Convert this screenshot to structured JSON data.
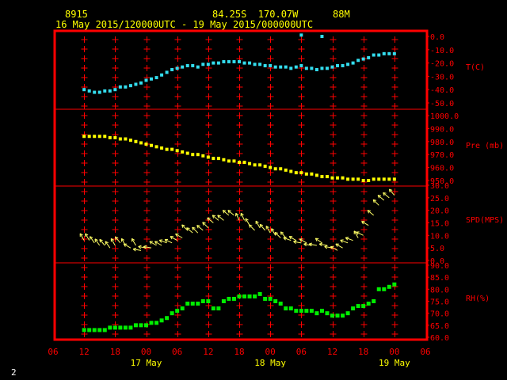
{
  "header": {
    "station_id": "8915",
    "location": "84.25S  170.07W",
    "elevation": "88M",
    "time_range": "16 May 2015/120000UTC - 19 May 2015/000000UTC"
  },
  "corner_label": "2",
  "colors": {
    "frame": "#ff0000",
    "grid": "#ff0000",
    "axis_text": "#ff0000",
    "header_text": "#ffff00",
    "temperature": "#33ddee",
    "pressure": "#ffff00",
    "wind": "#ffff66",
    "humidity": "#00ee00"
  },
  "chart_data": {
    "type": "scatter",
    "x_axis": {
      "unit": "hours since 16 May 2015 06 UTC",
      "range": [
        0,
        72
      ],
      "tick_labels": [
        "06",
        "12",
        "18",
        "00",
        "06",
        "12",
        "18",
        "00",
        "06",
        "12",
        "18",
        "00",
        "06"
      ],
      "day_labels": [
        {
          "label": "17 May",
          "at": 18
        },
        {
          "label": "18 May",
          "at": 42
        },
        {
          "label": "19 May",
          "at": 66
        }
      ]
    },
    "panels": [
      {
        "name": "temperature",
        "ylabel": "T(C)",
        "ylim": [
          -50,
          0
        ],
        "ticks": [
          "0.0",
          "-10.0",
          "-20.0",
          "-30.0",
          "-40.0",
          "-50.0"
        ],
        "tick_values": [
          0,
          -10,
          -20,
          -30,
          -40,
          -50
        ],
        "x": [
          6,
          7,
          8,
          9,
          10,
          11,
          12,
          13,
          14,
          15,
          16,
          17,
          18,
          19,
          20,
          21,
          22,
          23,
          24,
          25,
          26,
          27,
          28,
          29,
          30,
          31,
          32,
          33,
          34,
          35,
          36,
          37,
          38,
          39,
          40,
          41,
          42,
          43,
          44,
          45,
          46,
          47,
          48,
          49,
          50,
          51,
          52,
          53,
          54,
          55,
          56,
          57,
          58,
          59,
          60,
          61,
          62,
          63,
          64,
          65,
          66
        ],
        "values": [
          -40,
          -41,
          -42,
          -42,
          -41,
          -41,
          -40,
          -38,
          -38,
          -37,
          -36,
          -35,
          -33,
          -32,
          -31,
          -29,
          -27,
          -25,
          -24,
          -23,
          -22,
          -22,
          -23,
          -21,
          -21,
          -20,
          -20,
          -19,
          -19,
          -19,
          -19,
          -20,
          -20,
          -21,
          -21,
          -22,
          -22,
          -23,
          -23,
          -23,
          -24,
          -23,
          -22,
          -24,
          -24,
          -25,
          -24,
          -24,
          -23,
          -22,
          -22,
          -21,
          -20,
          -18,
          -17,
          -16,
          -14,
          -14,
          -13,
          -13,
          -13
        ],
        "outliers": [
          {
            "x": 48,
            "y": 1
          },
          {
            "x": 52,
            "y": 0
          }
        ]
      },
      {
        "name": "pressure",
        "ylabel": "Pre (mb)",
        "ylim": [
          950,
          1000
        ],
        "ticks": [
          "1000.0",
          "990.0",
          "980.0",
          "970.0",
          "960.0",
          "950.0"
        ],
        "tick_values": [
          1000,
          990,
          980,
          970,
          960,
          950
        ],
        "x": [
          6,
          7,
          8,
          9,
          10,
          11,
          12,
          13,
          14,
          15,
          16,
          17,
          18,
          19,
          20,
          21,
          22,
          23,
          24,
          25,
          26,
          27,
          28,
          29,
          30,
          31,
          32,
          33,
          34,
          35,
          36,
          37,
          38,
          39,
          40,
          41,
          42,
          43,
          44,
          45,
          46,
          47,
          48,
          49,
          50,
          51,
          52,
          53,
          54,
          55,
          56,
          57,
          58,
          59,
          60,
          61,
          62,
          63,
          64,
          65,
          66
        ],
        "values": [
          984,
          984,
          984,
          984,
          984,
          983,
          983,
          982,
          982,
          981,
          980,
          979,
          978,
          977,
          976,
          975,
          974,
          974,
          973,
          972,
          971,
          970,
          970,
          969,
          968,
          967,
          967,
          966,
          965,
          965,
          964,
          964,
          963,
          962,
          962,
          961,
          960,
          959,
          959,
          958,
          957,
          956,
          956,
          955,
          955,
          954,
          953,
          953,
          952,
          952,
          952,
          951,
          951,
          951,
          950,
          950,
          951,
          951,
          951,
          951,
          951
        ]
      },
      {
        "name": "wind",
        "ylabel": "SPD(MPS)",
        "ylim": [
          0,
          30
        ],
        "ticks": [
          "30.0",
          "25.0",
          "20.0",
          "15.0",
          "10.0",
          "5.0",
          "0.0"
        ],
        "tick_values": [
          30,
          25,
          20,
          15,
          10,
          5,
          0
        ],
        "x": [
          6,
          7,
          8,
          9,
          10,
          11,
          12,
          13,
          14,
          15,
          16,
          17,
          18,
          19,
          20,
          21,
          22,
          23,
          24,
          25,
          26,
          27,
          28,
          29,
          30,
          31,
          32,
          33,
          34,
          35,
          36,
          37,
          38,
          39,
          40,
          41,
          42,
          43,
          44,
          45,
          46,
          47,
          48,
          49,
          50,
          51,
          52,
          53,
          54,
          55,
          56,
          57,
          58,
          59,
          60,
          61,
          62,
          63,
          64,
          65,
          66
        ],
        "values": [
          8,
          8,
          7,
          6,
          6,
          5,
          6,
          7,
          6,
          5,
          6,
          4,
          5,
          5,
          6,
          6,
          7,
          7,
          8,
          9,
          12,
          11,
          11,
          12,
          13,
          15,
          16,
          16,
          18,
          18,
          16,
          16,
          14,
          12,
          13,
          12,
          11,
          10,
          9,
          9,
          8,
          8,
          7,
          7,
          6,
          6,
          7,
          6,
          5,
          4,
          5,
          7,
          8,
          9,
          10,
          14,
          18,
          22,
          24,
          25,
          26
        ],
        "direction_deg": [
          120,
          120,
          125,
          125,
          130,
          125,
          120,
          130,
          120,
          150,
          120,
          170,
          170,
          170,
          150,
          150,
          160,
          155,
          150,
          150,
          135,
          140,
          135,
          140,
          135,
          140,
          140,
          140,
          140,
          140,
          115,
          115,
          120,
          135,
          120,
          130,
          120,
          120,
          135,
          130,
          160,
          150,
          170,
          150,
          170,
          170,
          145,
          170,
          170,
          150,
          150,
          160,
          160,
          120,
          155,
          150,
          140,
          135,
          140,
          140,
          130
        ]
      },
      {
        "name": "humidity",
        "ylabel": "RH(%)",
        "ylim": [
          60,
          90
        ],
        "ticks": [
          "90.0",
          "85.0",
          "80.0",
          "75.0",
          "70.0",
          "65.0",
          "60.0"
        ],
        "tick_values": [
          90,
          85,
          80,
          75,
          70,
          65,
          60
        ],
        "x": [
          6,
          7,
          8,
          9,
          10,
          11,
          12,
          13,
          14,
          15,
          16,
          17,
          18,
          19,
          20,
          21,
          22,
          23,
          24,
          25,
          26,
          27,
          28,
          29,
          30,
          31,
          32,
          33,
          34,
          35,
          36,
          37,
          38,
          39,
          40,
          41,
          42,
          43,
          44,
          45,
          46,
          47,
          48,
          49,
          50,
          51,
          52,
          53,
          54,
          55,
          56,
          57,
          58,
          59,
          60,
          61,
          62,
          63,
          64,
          65,
          66
        ],
        "values": [
          63,
          63,
          63,
          63,
          63,
          64,
          64,
          64,
          64,
          64,
          65,
          65,
          65,
          66,
          66,
          67,
          68,
          70,
          71,
          72,
          74,
          74,
          74,
          75,
          75,
          72,
          72,
          75,
          76,
          76,
          77,
          77,
          77,
          77,
          78,
          76,
          76,
          75,
          74,
          72,
          72,
          71,
          71,
          71,
          71,
          70,
          71,
          70,
          69,
          69,
          69,
          70,
          72,
          73,
          73,
          74,
          75,
          80,
          80,
          81,
          82
        ]
      }
    ]
  }
}
